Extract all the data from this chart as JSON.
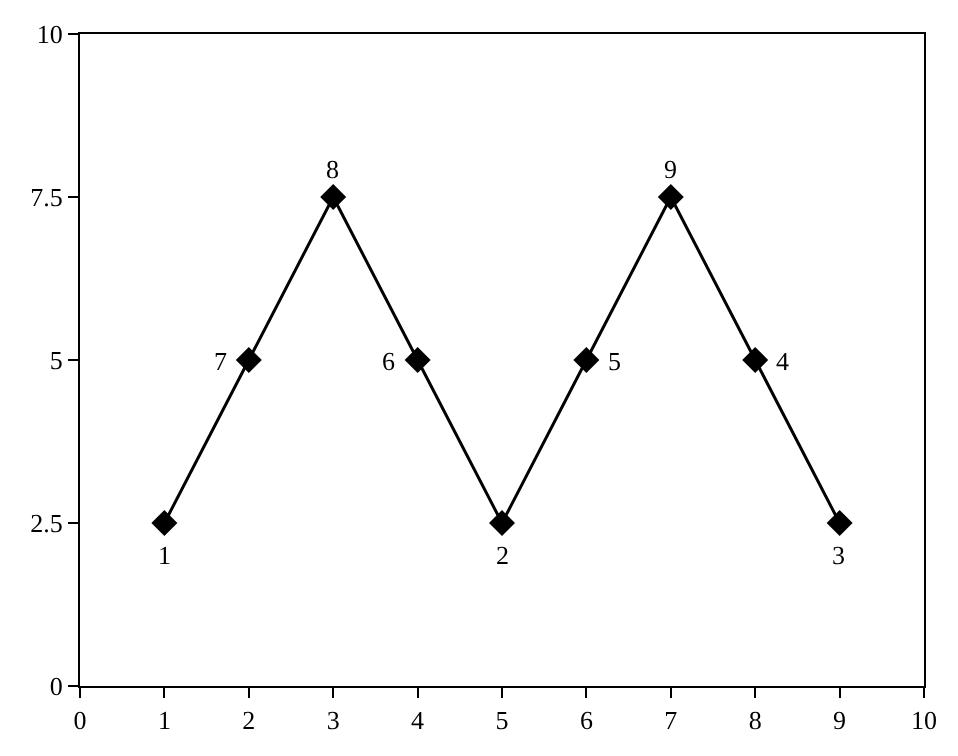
{
  "chart_data": {
    "type": "line",
    "x": [
      1,
      2,
      3,
      4,
      5,
      6,
      7,
      8,
      9
    ],
    "series": [
      {
        "color": "#000000",
        "values": [
          2.5,
          5,
          7.5,
          5,
          2.5,
          5,
          7.5,
          5,
          2.5
        ]
      }
    ],
    "annotations": [
      {
        "text": "1",
        "x": 1,
        "y": 2.5
      },
      {
        "text": "7",
        "x": 2,
        "y": 5
      },
      {
        "text": "8",
        "x": 3,
        "y": 7.5
      },
      {
        "text": "6",
        "x": 4,
        "y": 5
      },
      {
        "text": "2",
        "x": 5,
        "y": 2.5
      },
      {
        "text": "5",
        "x": 6,
        "y": 5
      },
      {
        "text": "9",
        "x": 7,
        "y": 7.5
      },
      {
        "text": "4",
        "x": 8,
        "y": 5
      },
      {
        "text": "3",
        "x": 9,
        "y": 2.5
      }
    ],
    "xlim": [
      0,
      10
    ],
    "xticks": [
      0,
      1,
      2,
      3,
      4,
      5,
      6,
      7,
      8,
      9,
      10
    ],
    "ylim": [
      0,
      10
    ],
    "yticks": [
      0,
      2.5,
      5,
      7.5,
      10
    ],
    "legend": false,
    "marker": "diamond",
    "line_style": "solid"
  }
}
